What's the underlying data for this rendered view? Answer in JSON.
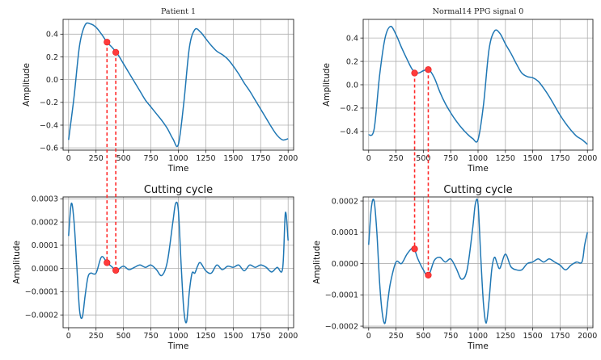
{
  "chart_data": [
    {
      "id": "tl",
      "type": "line",
      "title": "Patient 1",
      "title_style": "mono",
      "xlabel": "Time",
      "ylabel": "Amplitude",
      "xlim": [
        -50,
        2050
      ],
      "ylim": [
        -0.62,
        0.53
      ],
      "xticks": [
        0,
        250,
        500,
        750,
        1000,
        1250,
        1500,
        1750,
        2000
      ],
      "yticks": [
        -0.6,
        -0.4,
        -0.2,
        0.0,
        0.2,
        0.4
      ],
      "ytick_labels": [
        "−0.6",
        "−0.4",
        "−0.2",
        "0.0",
        "0.2",
        "0.4"
      ],
      "grid": true,
      "series": [
        {
          "x": [
            0,
            50,
            100,
            150,
            200,
            250,
            300,
            350,
            400,
            450,
            500,
            550,
            600,
            650,
            700,
            750,
            800,
            850,
            900,
            950,
            1000,
            1050,
            1100,
            1150,
            1200,
            1250,
            1300,
            1350,
            1400,
            1450,
            1500,
            1550,
            1600,
            1650,
            1700,
            1750,
            1800,
            1850,
            1900,
            1950,
            2000
          ],
          "y": [
            -0.53,
            -0.15,
            0.3,
            0.48,
            0.49,
            0.46,
            0.4,
            0.33,
            0.28,
            0.22,
            0.14,
            0.06,
            -0.02,
            -0.1,
            -0.18,
            -0.24,
            -0.3,
            -0.36,
            -0.43,
            -0.52,
            -0.57,
            -0.2,
            0.28,
            0.44,
            0.42,
            0.36,
            0.3,
            0.25,
            0.22,
            0.18,
            0.12,
            0.05,
            -0.03,
            -0.1,
            -0.18,
            -0.26,
            -0.34,
            -0.42,
            -0.49,
            -0.53,
            -0.52
          ]
        }
      ],
      "markers": [
        {
          "x": 350,
          "y": 0.33
        },
        {
          "x": 430,
          "y": 0.24
        }
      ]
    },
    {
      "id": "tr",
      "type": "line",
      "title": "Normal14 PPG signal 0",
      "title_style": "mono",
      "xlabel": "Time",
      "ylabel": "Amplitude",
      "xlim": [
        -50,
        2050
      ],
      "ylim": [
        -0.56,
        0.56
      ],
      "xticks": [
        0,
        250,
        500,
        750,
        1000,
        1250,
        1500,
        1750,
        2000
      ],
      "yticks": [
        -0.4,
        -0.2,
        0.0,
        0.2,
        0.4
      ],
      "ytick_labels": [
        "−0.4",
        "−0.2",
        "0.0",
        "0.2",
        "0.4"
      ],
      "grid": true,
      "series": [
        {
          "x": [
            0,
            50,
            100,
            150,
            200,
            250,
            300,
            350,
            400,
            450,
            500,
            550,
            600,
            650,
            700,
            750,
            800,
            850,
            900,
            950,
            1000,
            1050,
            1100,
            1150,
            1200,
            1250,
            1300,
            1350,
            1400,
            1450,
            1500,
            1550,
            1600,
            1650,
            1700,
            1750,
            1800,
            1850,
            1900,
            1950,
            2000
          ],
          "y": [
            -0.43,
            -0.38,
            0.08,
            0.4,
            0.5,
            0.43,
            0.32,
            0.22,
            0.13,
            0.1,
            0.12,
            0.13,
            0.06,
            -0.06,
            -0.16,
            -0.24,
            -0.31,
            -0.37,
            -0.42,
            -0.46,
            -0.47,
            -0.17,
            0.3,
            0.46,
            0.44,
            0.35,
            0.27,
            0.18,
            0.1,
            0.07,
            0.06,
            0.03,
            -0.03,
            -0.1,
            -0.18,
            -0.26,
            -0.33,
            -0.39,
            -0.44,
            -0.47,
            -0.51
          ]
        }
      ],
      "markers": [
        {
          "x": 420,
          "y": 0.1
        },
        {
          "x": 545,
          "y": 0.13
        }
      ]
    },
    {
      "id": "bl",
      "type": "line",
      "title": "Cutting cycle",
      "title_style": "sans",
      "xlabel": "Time",
      "ylabel": "Amplitude",
      "xlim": [
        -50,
        2050
      ],
      "ylim": [
        -0.000255,
        0.000308
      ],
      "xticks": [
        0,
        250,
        500,
        750,
        1000,
        1250,
        1500,
        1750,
        2000
      ],
      "yticks": [
        -0.0002,
        -0.0001,
        0.0,
        0.0001,
        0.0002,
        0.0003
      ],
      "ytick_labels": [
        "−0.0002",
        "−0.0001",
        "0.0000",
        "0.0001",
        "0.0002",
        "0.0003"
      ],
      "grid": true,
      "series": [
        {
          "x": [
            0,
            25,
            50,
            75,
            100,
            125,
            150,
            175,
            200,
            250,
            300,
            350,
            400,
            430,
            450,
            500,
            550,
            600,
            650,
            700,
            750,
            800,
            850,
            900,
            950,
            975,
            1000,
            1025,
            1050,
            1075,
            1100,
            1125,
            1150,
            1175,
            1200,
            1250,
            1300,
            1350,
            1400,
            1450,
            1500,
            1550,
            1600,
            1650,
            1700,
            1750,
            1800,
            1850,
            1900,
            1950,
            1975,
            2000
          ],
          "y": [
            0.00014,
            0.00028,
            0.0002,
            1e-05,
            -0.00018,
            -0.00021,
            -0.00012,
            -4e-05,
            -2e-05,
            -2e-05,
            5e-05,
            2.5e-05,
            5e-06,
            -1e-05,
            -5e-06,
            1e-05,
            -5e-06,
            5e-06,
            1.5e-05,
            5e-06,
            1.5e-05,
            -5e-06,
            -3e-05,
            3e-05,
            0.0002,
            0.00028,
            0.00025,
            2e-05,
            -0.00018,
            -0.00023,
            -0.0001,
            -2e-05,
            -2e-05,
            1e-05,
            2.5e-05,
            -1e-05,
            -2e-05,
            1.5e-05,
            -5e-06,
            1e-05,
            5e-06,
            1.5e-05,
            -1e-05,
            1.5e-05,
            5e-06,
            1.5e-05,
            5e-06,
            -1.5e-05,
            5e-06,
            0.0,
            0.00024,
            0.00012
          ]
        }
      ],
      "markers": [
        {
          "x": 350,
          "y": 2.5e-05
        },
        {
          "x": 430,
          "y": -8e-06
        }
      ]
    },
    {
      "id": "br",
      "type": "line",
      "title": "Cutting cycle",
      "title_style": "sans",
      "xlabel": "Time",
      "ylabel": "Amplitude",
      "xlim": [
        -50,
        2050
      ],
      "ylim": [
        -0.000205,
        0.000213
      ],
      "xticks": [
        0,
        250,
        500,
        750,
        1000,
        1250,
        1500,
        1750,
        2000
      ],
      "yticks": [
        -0.0002,
        -0.0001,
        0.0,
        0.0001,
        0.0002
      ],
      "ytick_labels": [
        "−0.0002",
        "−0.0001",
        "0.0000",
        "0.0001",
        "0.0002"
      ],
      "grid": true,
      "series": [
        {
          "x": [
            0,
            25,
            50,
            75,
            100,
            125,
            150,
            175,
            200,
            250,
            300,
            350,
            400,
            420,
            450,
            500,
            545,
            600,
            650,
            700,
            750,
            800,
            850,
            900,
            950,
            975,
            1000,
            1025,
            1050,
            1075,
            1100,
            1125,
            1150,
            1175,
            1200,
            1250,
            1300,
            1350,
            1400,
            1450,
            1500,
            1550,
            1600,
            1650,
            1700,
            1750,
            1800,
            1850,
            1900,
            1950,
            1975,
            2000
          ],
          "y": [
            6e-05,
            0.00018,
            0.0002,
            0.0001,
            -6e-05,
            -0.00016,
            -0.00019,
            -0.00012,
            -6e-05,
            5e-06,
            0.0,
            3e-05,
            5e-05,
            4.5e-05,
            1.5e-05,
            -2e-05,
            -4e-05,
            1e-05,
            2e-05,
            5e-06,
            1.5e-05,
            -1.5e-05,
            -5e-05,
            -2e-05,
            0.00011,
            0.00019,
            0.00019,
            2e-05,
            -0.00013,
            -0.00019,
            -0.00012,
            -2e-05,
            2e-05,
            0.0,
            -1.5e-05,
            3e-05,
            -1e-05,
            -2e-05,
            -2e-05,
            0.0,
            5e-06,
            1.5e-05,
            5e-06,
            1.5e-05,
            5e-06,
            -5e-06,
            -2e-05,
            -5e-06,
            5e-06,
            5e-06,
            6e-05,
            0.0001
          ]
        }
      ],
      "markers": [
        {
          "x": 420,
          "y": 4.7e-05
        },
        {
          "x": 545,
          "y": -3.7e-05
        }
      ]
    }
  ],
  "connectors": [
    {
      "from": "tl",
      "to": "bl",
      "marker": 0
    },
    {
      "from": "tl",
      "to": "bl",
      "marker": 1
    },
    {
      "from": "tr",
      "to": "br",
      "marker": 0
    },
    {
      "from": "tr",
      "to": "br",
      "marker": 1
    }
  ],
  "colors": {
    "line": "#1f77b4",
    "marker": "#ff3b3b",
    "connector": "#ff2a2a",
    "grid": "#b0b0b0"
  }
}
